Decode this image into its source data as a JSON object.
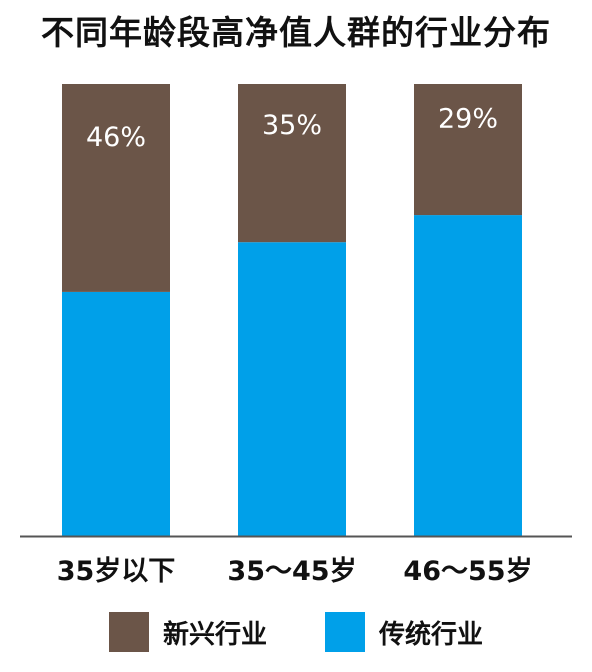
{
  "chart_data": {
    "type": "bar",
    "stacked": true,
    "percent": true,
    "title": "不同年龄段高净值人群的行业分布",
    "categories": [
      "35岁以下",
      "35～45岁",
      "46～55岁"
    ],
    "series": [
      {
        "name": "传统行业",
        "values": [
          54,
          65,
          71
        ],
        "color": "#00a0e9"
      },
      {
        "name": "新兴行业",
        "values": [
          46,
          35,
          29
        ],
        "color": "#6b5548",
        "data_labels": [
          "46%",
          "35%",
          "29%"
        ]
      }
    ],
    "ylim": [
      0,
      100
    ],
    "grid": false,
    "legend_position": "bottom"
  }
}
